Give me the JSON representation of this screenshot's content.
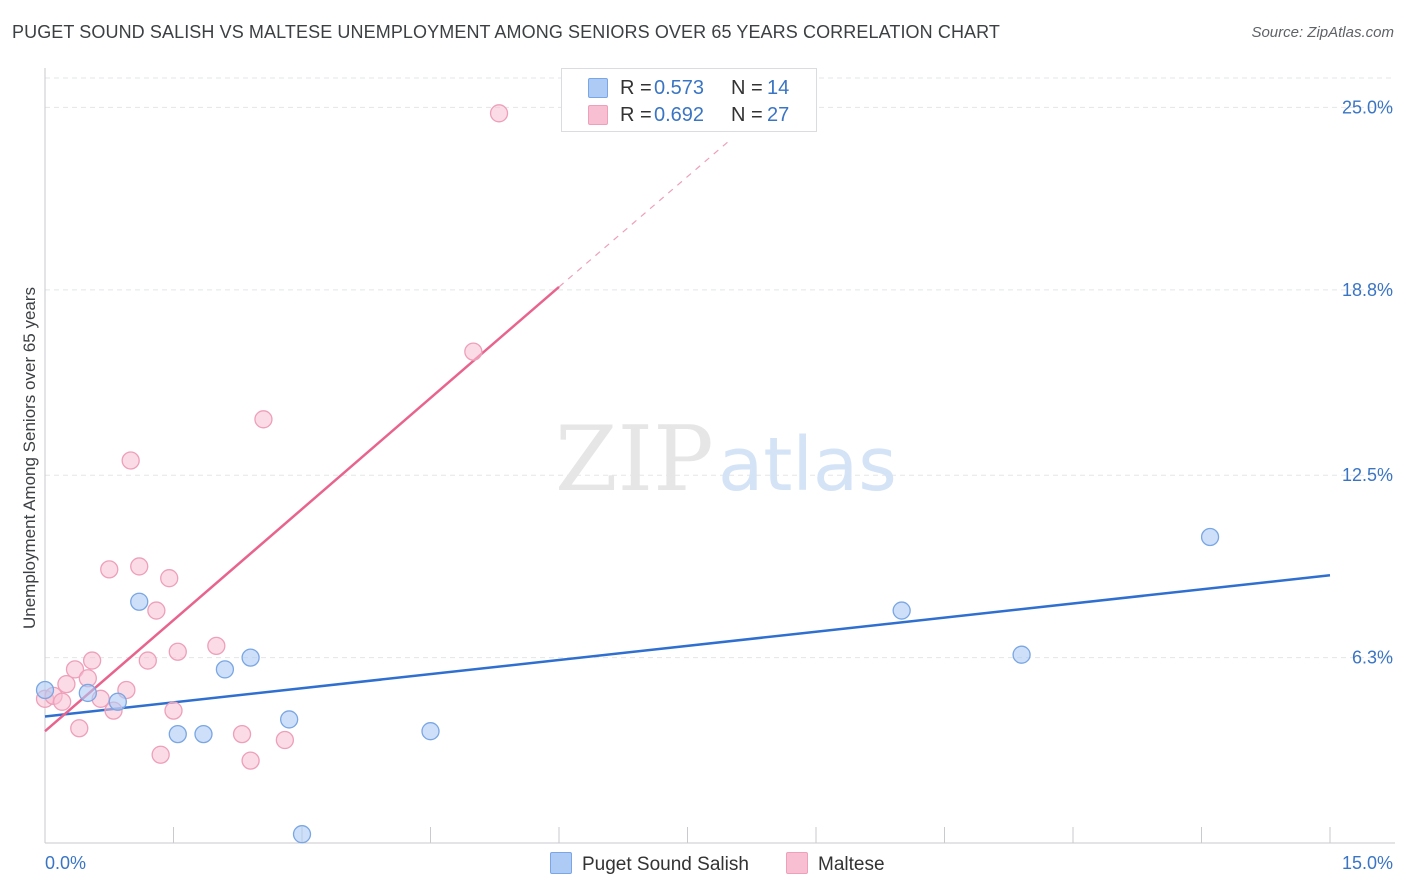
{
  "title": "PUGET SOUND SALISH VS MALTESE UNEMPLOYMENT AMONG SENIORS OVER 65 YEARS CORRELATION CHART",
  "source": "Source: ZipAtlas.com",
  "watermark": {
    "zip": "ZIP",
    "atlas": "atlas"
  },
  "legend": {
    "series1": {
      "r_label": "R =",
      "r_value": "0.573",
      "n_label": "N =",
      "n_value": "14"
    },
    "series2": {
      "r_label": "R =",
      "r_value": "0.692",
      "n_label": "N =",
      "n_value": "27"
    }
  },
  "colors": {
    "blue_fill": "#aecbf5",
    "blue_stroke": "#7aa6e3",
    "blue_line": "#2f6fd0",
    "pink_fill": "#f7bfd1",
    "pink_stroke": "#ee9fba",
    "pink_line": "#e8648e",
    "tick_text": "#3a75c4",
    "grid": "#e3e5e8"
  },
  "chart_data": {
    "type": "scatter",
    "title": "PUGET SOUND SALISH VS MALTESE UNEMPLOYMENT AMONG SENIORS OVER 65 YEARS CORRELATION CHART",
    "xlabel": "",
    "ylabel": "Unemployment Among Seniors over 65 years",
    "xlim": [
      0,
      15
    ],
    "ylim": [
      0,
      26
    ],
    "x_tick_labels": [
      {
        "value": 0,
        "label": "0.0%"
      },
      {
        "value": 15,
        "label": "15.0%"
      }
    ],
    "y_tick_labels": [
      {
        "value": 6.3,
        "label": "6.3%"
      },
      {
        "value": 12.5,
        "label": "12.5%"
      },
      {
        "value": 18.8,
        "label": "18.8%"
      },
      {
        "value": 25.0,
        "label": "25.0%"
      }
    ],
    "series": [
      {
        "name": "Puget Sound Salish",
        "color": "#aecbf5",
        "points": [
          [
            0.0,
            5.2
          ],
          [
            0.5,
            5.1
          ],
          [
            0.85,
            4.8
          ],
          [
            1.1,
            8.2
          ],
          [
            1.55,
            3.7
          ],
          [
            1.85,
            3.7
          ],
          [
            2.1,
            5.9
          ],
          [
            2.4,
            6.3
          ],
          [
            2.85,
            4.2
          ],
          [
            3.0,
            0.3
          ],
          [
            4.5,
            3.8
          ],
          [
            10.0,
            7.9
          ],
          [
            11.4,
            6.4
          ],
          [
            13.6,
            10.4
          ]
        ],
        "trend": {
          "x": [
            0,
            15
          ],
          "y": [
            4.3,
            9.1
          ]
        }
      },
      {
        "name": "Maltese",
        "color": "#f7bfd1",
        "points": [
          [
            0.0,
            4.9
          ],
          [
            0.1,
            5.0
          ],
          [
            0.2,
            4.8
          ],
          [
            0.25,
            5.4
          ],
          [
            0.35,
            5.9
          ],
          [
            0.4,
            3.9
          ],
          [
            0.5,
            5.6
          ],
          [
            0.55,
            6.2
          ],
          [
            0.65,
            4.9
          ],
          [
            0.75,
            9.3
          ],
          [
            0.8,
            4.5
          ],
          [
            0.95,
            5.2
          ],
          [
            1.0,
            13.0
          ],
          [
            1.1,
            9.4
          ],
          [
            1.2,
            6.2
          ],
          [
            1.3,
            7.9
          ],
          [
            1.45,
            9.0
          ],
          [
            1.5,
            4.5
          ],
          [
            1.55,
            6.5
          ],
          [
            1.35,
            3.0
          ],
          [
            2.0,
            6.7
          ],
          [
            2.3,
            3.7
          ],
          [
            2.4,
            2.8
          ],
          [
            2.55,
            14.4
          ],
          [
            2.8,
            3.5
          ],
          [
            5.0,
            16.7
          ],
          [
            5.3,
            24.8
          ]
        ],
        "trend": {
          "x": [
            0,
            6.0
          ],
          "y": [
            3.8,
            18.9
          ]
        },
        "trend_extension": {
          "x": [
            6.0,
            8.0
          ],
          "y": [
            18.9,
            23.9
          ]
        }
      }
    ],
    "legend_entries": [
      "Puget Sound Salish",
      "Maltese"
    ],
    "grid": true
  }
}
